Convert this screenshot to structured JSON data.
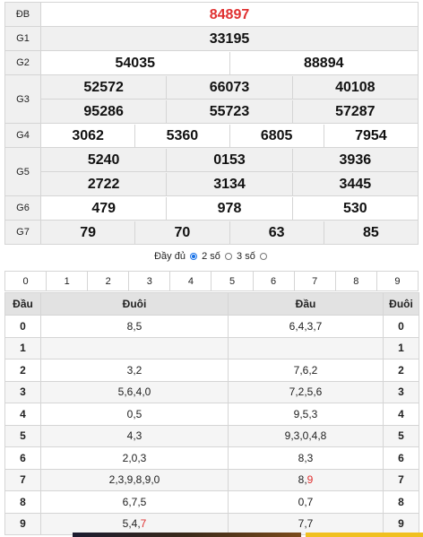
{
  "prizes": [
    {
      "label": "ĐB",
      "rows": [
        [
          "84897"
        ]
      ],
      "special": true
    },
    {
      "label": "G1",
      "rows": [
        [
          "33195"
        ]
      ]
    },
    {
      "label": "G2",
      "rows": [
        [
          "54035",
          "88894"
        ]
      ]
    },
    {
      "label": "G3",
      "rows": [
        [
          "52572",
          "66073",
          "40108"
        ],
        [
          "95286",
          "55723",
          "57287"
        ]
      ]
    },
    {
      "label": "G4",
      "rows": [
        [
          "3062",
          "5360",
          "6805",
          "7954"
        ]
      ]
    },
    {
      "label": "G5",
      "rows": [
        [
          "5240",
          "0153",
          "3936"
        ],
        [
          "2722",
          "3134",
          "3445"
        ]
      ]
    },
    {
      "label": "G6",
      "rows": [
        [
          "479",
          "978",
          "530"
        ]
      ]
    },
    {
      "label": "G7",
      "rows": [
        [
          "79",
          "70",
          "63",
          "85"
        ]
      ]
    }
  ],
  "options": {
    "full": "Đầy đủ",
    "two": "2 số",
    "three": "3 số",
    "selected": "two"
  },
  "digits": [
    "0",
    "1",
    "2",
    "3",
    "4",
    "5",
    "6",
    "7",
    "8",
    "9"
  ],
  "loto": {
    "headers": [
      "Đầu",
      "Đuôi",
      "Đầu",
      "Đuôi"
    ],
    "rows": [
      {
        "head": "0",
        "tail": "8,5",
        "heads": "6,4,3,7",
        "tail_digit": "0"
      },
      {
        "head": "1",
        "tail": "",
        "heads": "",
        "tail_digit": "1"
      },
      {
        "head": "2",
        "tail": "3,2",
        "heads": "7,6,2",
        "tail_digit": "2"
      },
      {
        "head": "3",
        "tail": "5,6,4,0",
        "heads": "7,2,5,6",
        "tail_digit": "3"
      },
      {
        "head": "4",
        "tail": "0,5",
        "heads": "9,5,3",
        "tail_digit": "4"
      },
      {
        "head": "5",
        "tail": "4,3",
        "heads": "9,3,0,4,8",
        "tail_digit": "5"
      },
      {
        "head": "6",
        "tail": "2,0,3",
        "heads": "8,3",
        "tail_digit": "6"
      },
      {
        "head": "7",
        "tail": "2,3,9,8,9,0",
        "heads": "8,9",
        "tail_digit": "7",
        "heads_red_last": true
      },
      {
        "head": "8",
        "tail": "6,7,5",
        "heads": "0,7",
        "tail_digit": "8"
      },
      {
        "head": "9",
        "tail": "5,4,7",
        "heads": "7,7",
        "tail_digit": "9",
        "tail_red_last": true
      }
    ]
  },
  "colors": {
    "special": "#e03131",
    "radio_selected": "#1a73e8"
  }
}
